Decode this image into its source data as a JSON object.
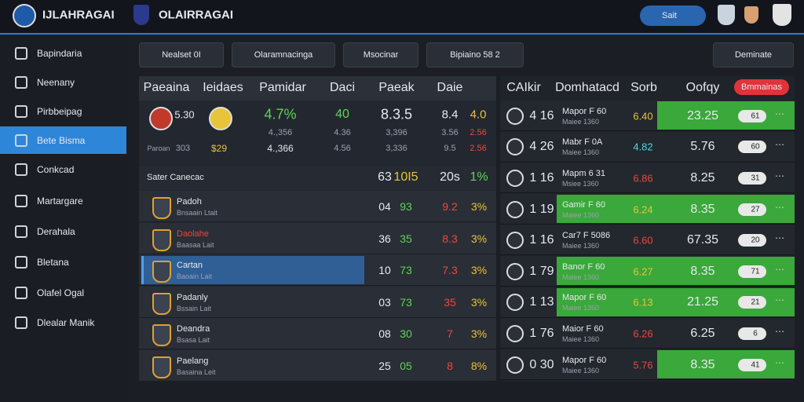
{
  "header": {
    "brand": "IJLAHRAGAI",
    "subbrand": "OLAIRRAGAI",
    "search": "Sait"
  },
  "sidebar": {
    "items": [
      "Bapindaria",
      "Neenany",
      "Pirbbeipag",
      "Bete Bisma",
      "Conkcad",
      "Martargare",
      "Derahala",
      "Bletana",
      "Olafel Ogal",
      "Dlealar Manik"
    ]
  },
  "filters": [
    "Nealset 0I",
    "Olaramnacinga",
    "Msocinar",
    "Bipiaino 58 2",
    "Deminate"
  ],
  "left_table": {
    "headers": [
      "Paeaina",
      "Ieidaes",
      "Pamidar",
      "Daci",
      "Paeak",
      "Daie"
    ],
    "card": [
      "5.30",
      "Paroan",
      "303",
      "$29",
      "4.7%",
      "4.,356",
      "4.,366",
      "40",
      "4.36",
      "4.56",
      "8.3.5",
      "3,396",
      "3,336",
      "8.4",
      "4.0",
      "3.56",
      "2.56",
      "9.5",
      "2.56"
    ],
    "section": {
      "title": "Sater Canecac",
      "cells": [
        "63",
        "10I5",
        "20s",
        "1%"
      ]
    },
    "rows": [
      [
        "Padoh",
        "Bnsaain Ltait",
        "04",
        "93",
        "9.2",
        "3%"
      ],
      [
        "Daolahe",
        "Baasaa Lait",
        "36",
        "35",
        "8.3",
        "3%"
      ],
      [
        "Cartan",
        "Baoain Lait",
        "10",
        "73",
        "7.3",
        "3%"
      ],
      [
        "Padanly",
        "Bssain Lait",
        "03",
        "73",
        "35",
        "3%"
      ],
      [
        "Deandra",
        "Bsasa Lait",
        "08",
        "30",
        "7",
        "3%"
      ],
      [
        "Paelang",
        "Basaina Leit",
        "25",
        "05",
        "8",
        "8%"
      ]
    ]
  },
  "right_table": {
    "headers": [
      "CAIkir",
      "Domhatacd",
      "Sorb",
      "Oofqy"
    ],
    "button": "Bmmainas",
    "rows": [
      [
        "4 16",
        "Mapor F 60",
        "Maiee 1360",
        "6.40",
        "23.25",
        "61"
      ],
      [
        "4 26",
        "Mabr F 0A",
        "Maiee 1360",
        "4.82",
        "5.76",
        "60"
      ],
      [
        "1 16",
        "Mapm 6 31",
        "Msiee 1360",
        "6.86",
        "8.25",
        "31"
      ],
      [
        "1 19",
        "Gamir F 60",
        "Maiee 1360",
        "6.24",
        "8.35",
        "27"
      ],
      [
        "1 16",
        "Car7 F 5086",
        "Maiee 1360",
        "6.60",
        "67.35",
        "20"
      ],
      [
        "1 79",
        "Banor F 60",
        "Maiee 1360",
        "6.27",
        "8.35",
        "71"
      ],
      [
        "1 13",
        "Mapor F 60",
        "Maiee 1360",
        "6.13",
        "21.25",
        "21"
      ],
      [
        "1 76",
        "Maior F 60",
        "Maiee 1360",
        "6.26",
        "6.25",
        "6"
      ],
      [
        "0 30",
        "Mapor F 60",
        "Maiee 1360",
        "5.76",
        "8.35",
        "41"
      ]
    ]
  }
}
